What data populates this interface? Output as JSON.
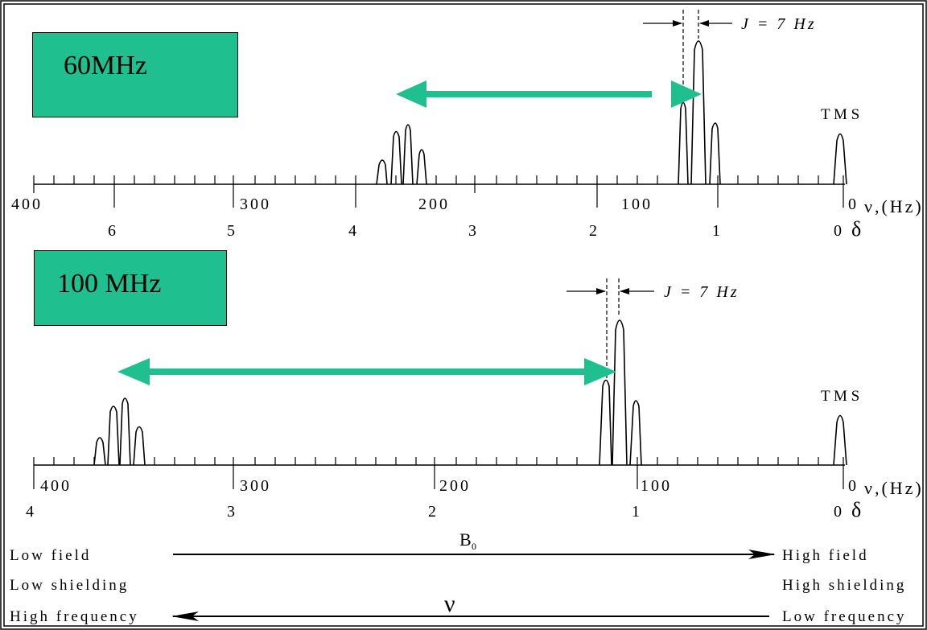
{
  "spectrum_60": {
    "label": "60MHz",
    "j_label": "J = 7 Hz",
    "tms_label": "T M S",
    "hz_ticks": [
      "400",
      "300",
      "200",
      "100",
      "0"
    ],
    "delta_ticks": [
      "6",
      "5",
      "4",
      "3",
      "2",
      "1",
      "0"
    ],
    "hz_axis_label": "ν,(Hz)",
    "delta_axis_label": "δ"
  },
  "spectrum_100": {
    "label": "100 MHz",
    "j_label": "J = 7 Hz",
    "tms_label": "T M S",
    "hz_ticks": [
      "400",
      "300",
      "200",
      "100",
      "0"
    ],
    "delta_ticks": [
      "4",
      "3",
      "2",
      "1",
      "0"
    ],
    "hz_axis_label": "ν,(Hz)",
    "delta_axis_label": "δ"
  },
  "legend": {
    "low_field": "Low field",
    "low_shielding": "Low shielding",
    "high_frequency": "High frequency",
    "high_field": "High field",
    "high_shielding": "High shielding",
    "low_frequency": "Low frequency",
    "b0_label": "B",
    "b0_subscript": "0",
    "nu_label": "ν"
  },
  "colors": {
    "label_box": "#1fbf8f",
    "separation_arrow": "#1fbf8f",
    "ink": "#000000"
  }
}
